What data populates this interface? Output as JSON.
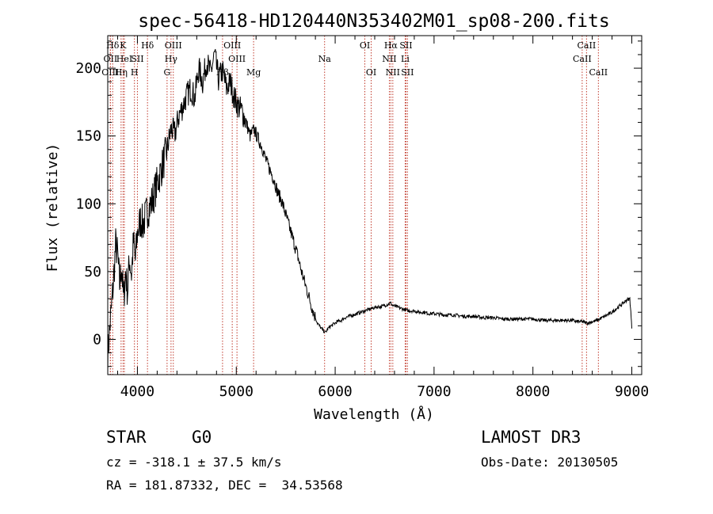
{
  "chart_data": {
    "type": "line",
    "title": "spec-56418-HD120440N353402M01_sp08-200.fits",
    "xlabel": "Wavelength (Å)",
    "ylabel": "Flux (relative)",
    "xlim": [
      3700,
      9100
    ],
    "ylim": [
      -26,
      224
    ],
    "xticks": [
      4000,
      5000,
      6000,
      7000,
      8000,
      9000
    ],
    "yticks": [
      0,
      50,
      100,
      150,
      200
    ],
    "series": [
      {
        "name": "flux",
        "x": [
          3700,
          3720,
          3740,
          3760,
          3780,
          3800,
          3820,
          3840,
          3860,
          3880,
          3900,
          3920,
          3940,
          3960,
          3980,
          4000,
          4030,
          4060,
          4100,
          4140,
          4180,
          4220,
          4260,
          4300,
          4340,
          4380,
          4420,
          4460,
          4500,
          4540,
          4580,
          4620,
          4660,
          4700,
          4740,
          4780,
          4820,
          4860,
          4900,
          4940,
          4980,
          5020,
          5060,
          5100,
          5140,
          5180,
          5220,
          5260,
          5300,
          5340,
          5380,
          5420,
          5460,
          5500,
          5540,
          5580,
          5620,
          5660,
          5700,
          5740,
          5780,
          5820,
          5860,
          5900,
          5940,
          5980,
          6020,
          6060,
          6100,
          6140,
          6180,
          6220,
          6260,
          6300,
          6340,
          6380,
          6420,
          6460,
          6500,
          6540,
          6560,
          6580,
          6620,
          6660,
          6700,
          6750,
          6800,
          6850,
          6900,
          6950,
          7000,
          7100,
          7200,
          7300,
          7400,
          7500,
          7600,
          7700,
          7800,
          7900,
          8000,
          8100,
          8200,
          8300,
          8400,
          8450,
          8500,
          8550,
          8600,
          8650,
          8700,
          8750,
          8800,
          8850,
          8900,
          8950,
          8980,
          8990,
          9000
        ],
        "y": [
          -12,
          8,
          25,
          45,
          70,
          62,
          40,
          55,
          28,
          50,
          35,
          60,
          48,
          72,
          58,
          78,
          88,
          85,
          95,
          100,
          110,
          120,
          130,
          140,
          155,
          152,
          165,
          172,
          180,
          185,
          178,
          200,
          190,
          205,
          196,
          210,
          192,
          198,
          185,
          190,
          178,
          172,
          168,
          160,
          150,
          155,
          148,
          142,
          132,
          125,
          118,
          108,
          102,
          92,
          82,
          72,
          62,
          50,
          40,
          30,
          20,
          12,
          8,
          5,
          9,
          11,
          13,
          14,
          16,
          17,
          18,
          19,
          20,
          21,
          22,
          23,
          24,
          24,
          25,
          26,
          27,
          25,
          24,
          23,
          22,
          21,
          21,
          20,
          20,
          19,
          19,
          18,
          18,
          17,
          17,
          16,
          16,
          15,
          15,
          15,
          15,
          14,
          14,
          14,
          14,
          13,
          13,
          12,
          13,
          14,
          16,
          18,
          20,
          23,
          26,
          29,
          30,
          20,
          8
        ]
      }
    ],
    "spectral_lines": [
      {
        "label": "Hδ",
        "wave": 3750,
        "row": 1
      },
      {
        "label": "OII",
        "wave": 3727,
        "row": 2
      },
      {
        "label": "OIII",
        "wave": 3726,
        "row": 3
      },
      {
        "label": "K",
        "wave": 3855,
        "row": 1
      },
      {
        "label": "HeI",
        "wave": 3868,
        "row": 2
      },
      {
        "label": "Hη",
        "wave": 3835,
        "row": 3
      },
      {
        "label": "SII",
        "wave": 4000,
        "row": 2
      },
      {
        "label": "H",
        "wave": 3970,
        "row": 3
      },
      {
        "label": "Hδ",
        "wave": 4102,
        "row": 1
      },
      {
        "label": "OIII",
        "wave": 4363,
        "row": 1
      },
      {
        "label": "Hγ",
        "wave": 4340,
        "row": 2
      },
      {
        "label": "G",
        "wave": 4300,
        "row": 3
      },
      {
        "label": "OIII",
        "wave": 4959,
        "row": 1
      },
      {
        "label": "OIII",
        "wave": 5007,
        "row": 2
      },
      {
        "label": "Hβ",
        "wave": 4861,
        "row": 3
      },
      {
        "label": "Mg",
        "wave": 5175,
        "row": 3
      },
      {
        "label": "Na",
        "wave": 5893,
        "row": 2
      },
      {
        "label": "OI",
        "wave": 6300,
        "row": 1
      },
      {
        "label": "OI",
        "wave": 6364,
        "row": 3
      },
      {
        "label": "Hα",
        "wave": 6563,
        "row": 1
      },
      {
        "label": "NII",
        "wave": 6548,
        "row": 2
      },
      {
        "label": "NII",
        "wave": 6583,
        "row": 3
      },
      {
        "label": "SII",
        "wave": 6716,
        "row": 1
      },
      {
        "label": "Li",
        "wave": 6708,
        "row": 2
      },
      {
        "label": "SII",
        "wave": 6731,
        "row": 3
      },
      {
        "label": "CaII",
        "wave": 8542,
        "row": 1
      },
      {
        "label": "CaII",
        "wave": 8498,
        "row": 2
      },
      {
        "label": "CaII",
        "wave": 8662,
        "row": 3
      }
    ]
  },
  "info": {
    "object_class": "STAR",
    "subclass": "G0",
    "survey": "LAMOST DR3",
    "velocity": "cz = -318.1 ± 37.5 km/s",
    "obs_date": "Obs-Date: 20130505",
    "coords": "RA = 181.87332, DEC =  34.53568"
  },
  "colors": {
    "spectrum": "#000000",
    "line_marker": "#c0392b",
    "background": "#ffffff"
  }
}
